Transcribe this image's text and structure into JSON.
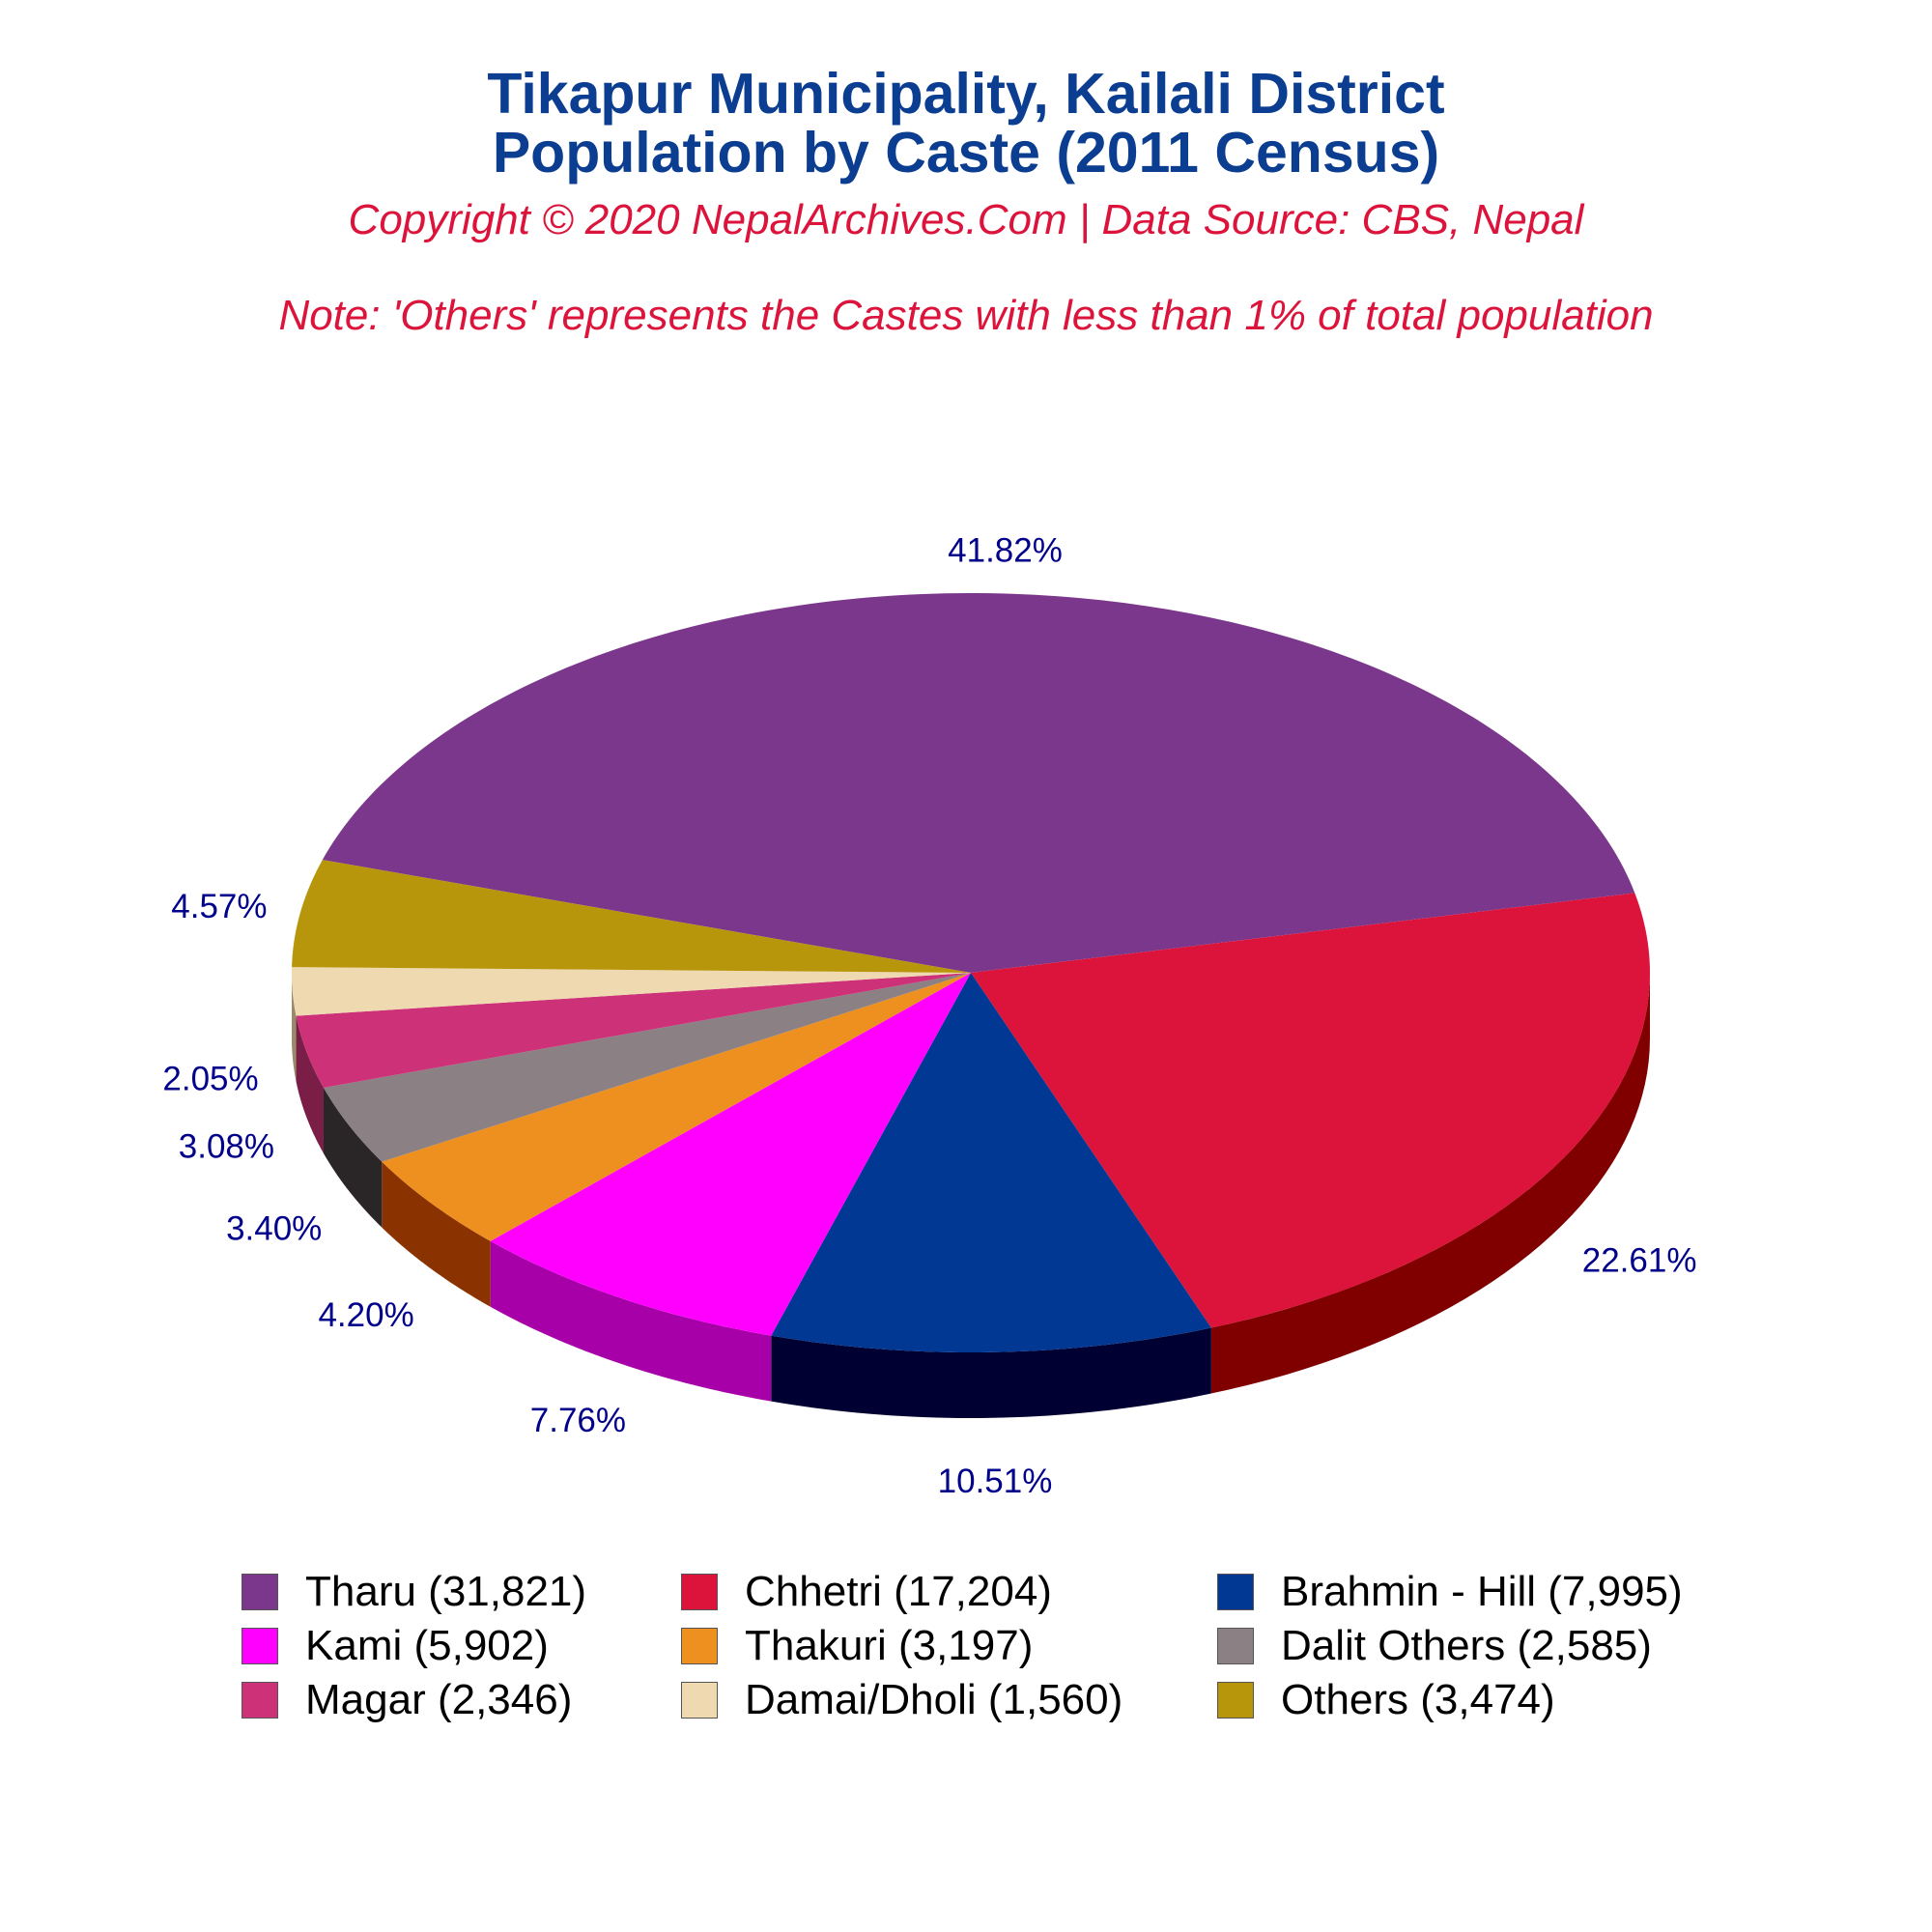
{
  "header": {
    "title_line1": "Tikapur Municipality, Kailali District",
    "title_line2": "Population by Caste (2011 Census)",
    "copyright": "Copyright © 2020 NepalArchives.Com | Data Source: CBS, Nepal",
    "note": "Note: 'Others' represents the Castes with less than 1% of total population"
  },
  "chart_data": {
    "type": "pie",
    "title": "Tikapur Municipality, Kailali District Population by Caste (2011 Census)",
    "slices": [
      {
        "label": "Tharu (31,821)",
        "name": "Tharu",
        "value": 31821,
        "percent": 41.82,
        "pct_label": "41.82%",
        "color": "#7b378b",
        "side_color": "#4a2054"
      },
      {
        "label": "Chhetri (17,204)",
        "name": "Chhetri",
        "value": 17204,
        "percent": 22.61,
        "pct_label": "22.61%",
        "color": "#dc143c",
        "side_color": "#800000"
      },
      {
        "label": "Brahmin - Hill (7,995)",
        "name": "Brahmin - Hill",
        "value": 7995,
        "percent": 10.51,
        "pct_label": "10.51%",
        "color": "#003893",
        "side_color": "#000033"
      },
      {
        "label": "Kami (5,902)",
        "name": "Kami",
        "value": 5902,
        "percent": 7.76,
        "pct_label": "7.76%",
        "color": "#ff00ff",
        "side_color": "#a800a8"
      },
      {
        "label": "Thakuri (3,197)",
        "name": "Thakuri",
        "value": 3197,
        "percent": 4.2,
        "pct_label": "4.20%",
        "color": "#ee9020",
        "side_color": "#8b3300"
      },
      {
        "label": "Dalit Others (2,585)",
        "name": "Dalit Others",
        "value": 2585,
        "percent": 3.4,
        "pct_label": "3.40%",
        "color": "#8b8184",
        "side_color": "#2a2527"
      },
      {
        "label": "Magar (2,346)",
        "name": "Magar",
        "value": 2346,
        "percent": 3.08,
        "pct_label": "3.08%",
        "color": "#cd3278",
        "side_color": "#7a1d47"
      },
      {
        "label": "Damai/Dholi (1,560)",
        "name": "Damai/Dholi",
        "value": 1560,
        "percent": 2.05,
        "pct_label": "2.05%",
        "color": "#eed9b0",
        "side_color": "#9a8a6a"
      },
      {
        "label": "Others (3,474)",
        "name": "Others",
        "value": 3474,
        "percent": 4.57,
        "pct_label": "4.57%",
        "color": "#b8960c",
        "side_color": "#6b5707"
      }
    ],
    "legend_position": "bottom"
  }
}
